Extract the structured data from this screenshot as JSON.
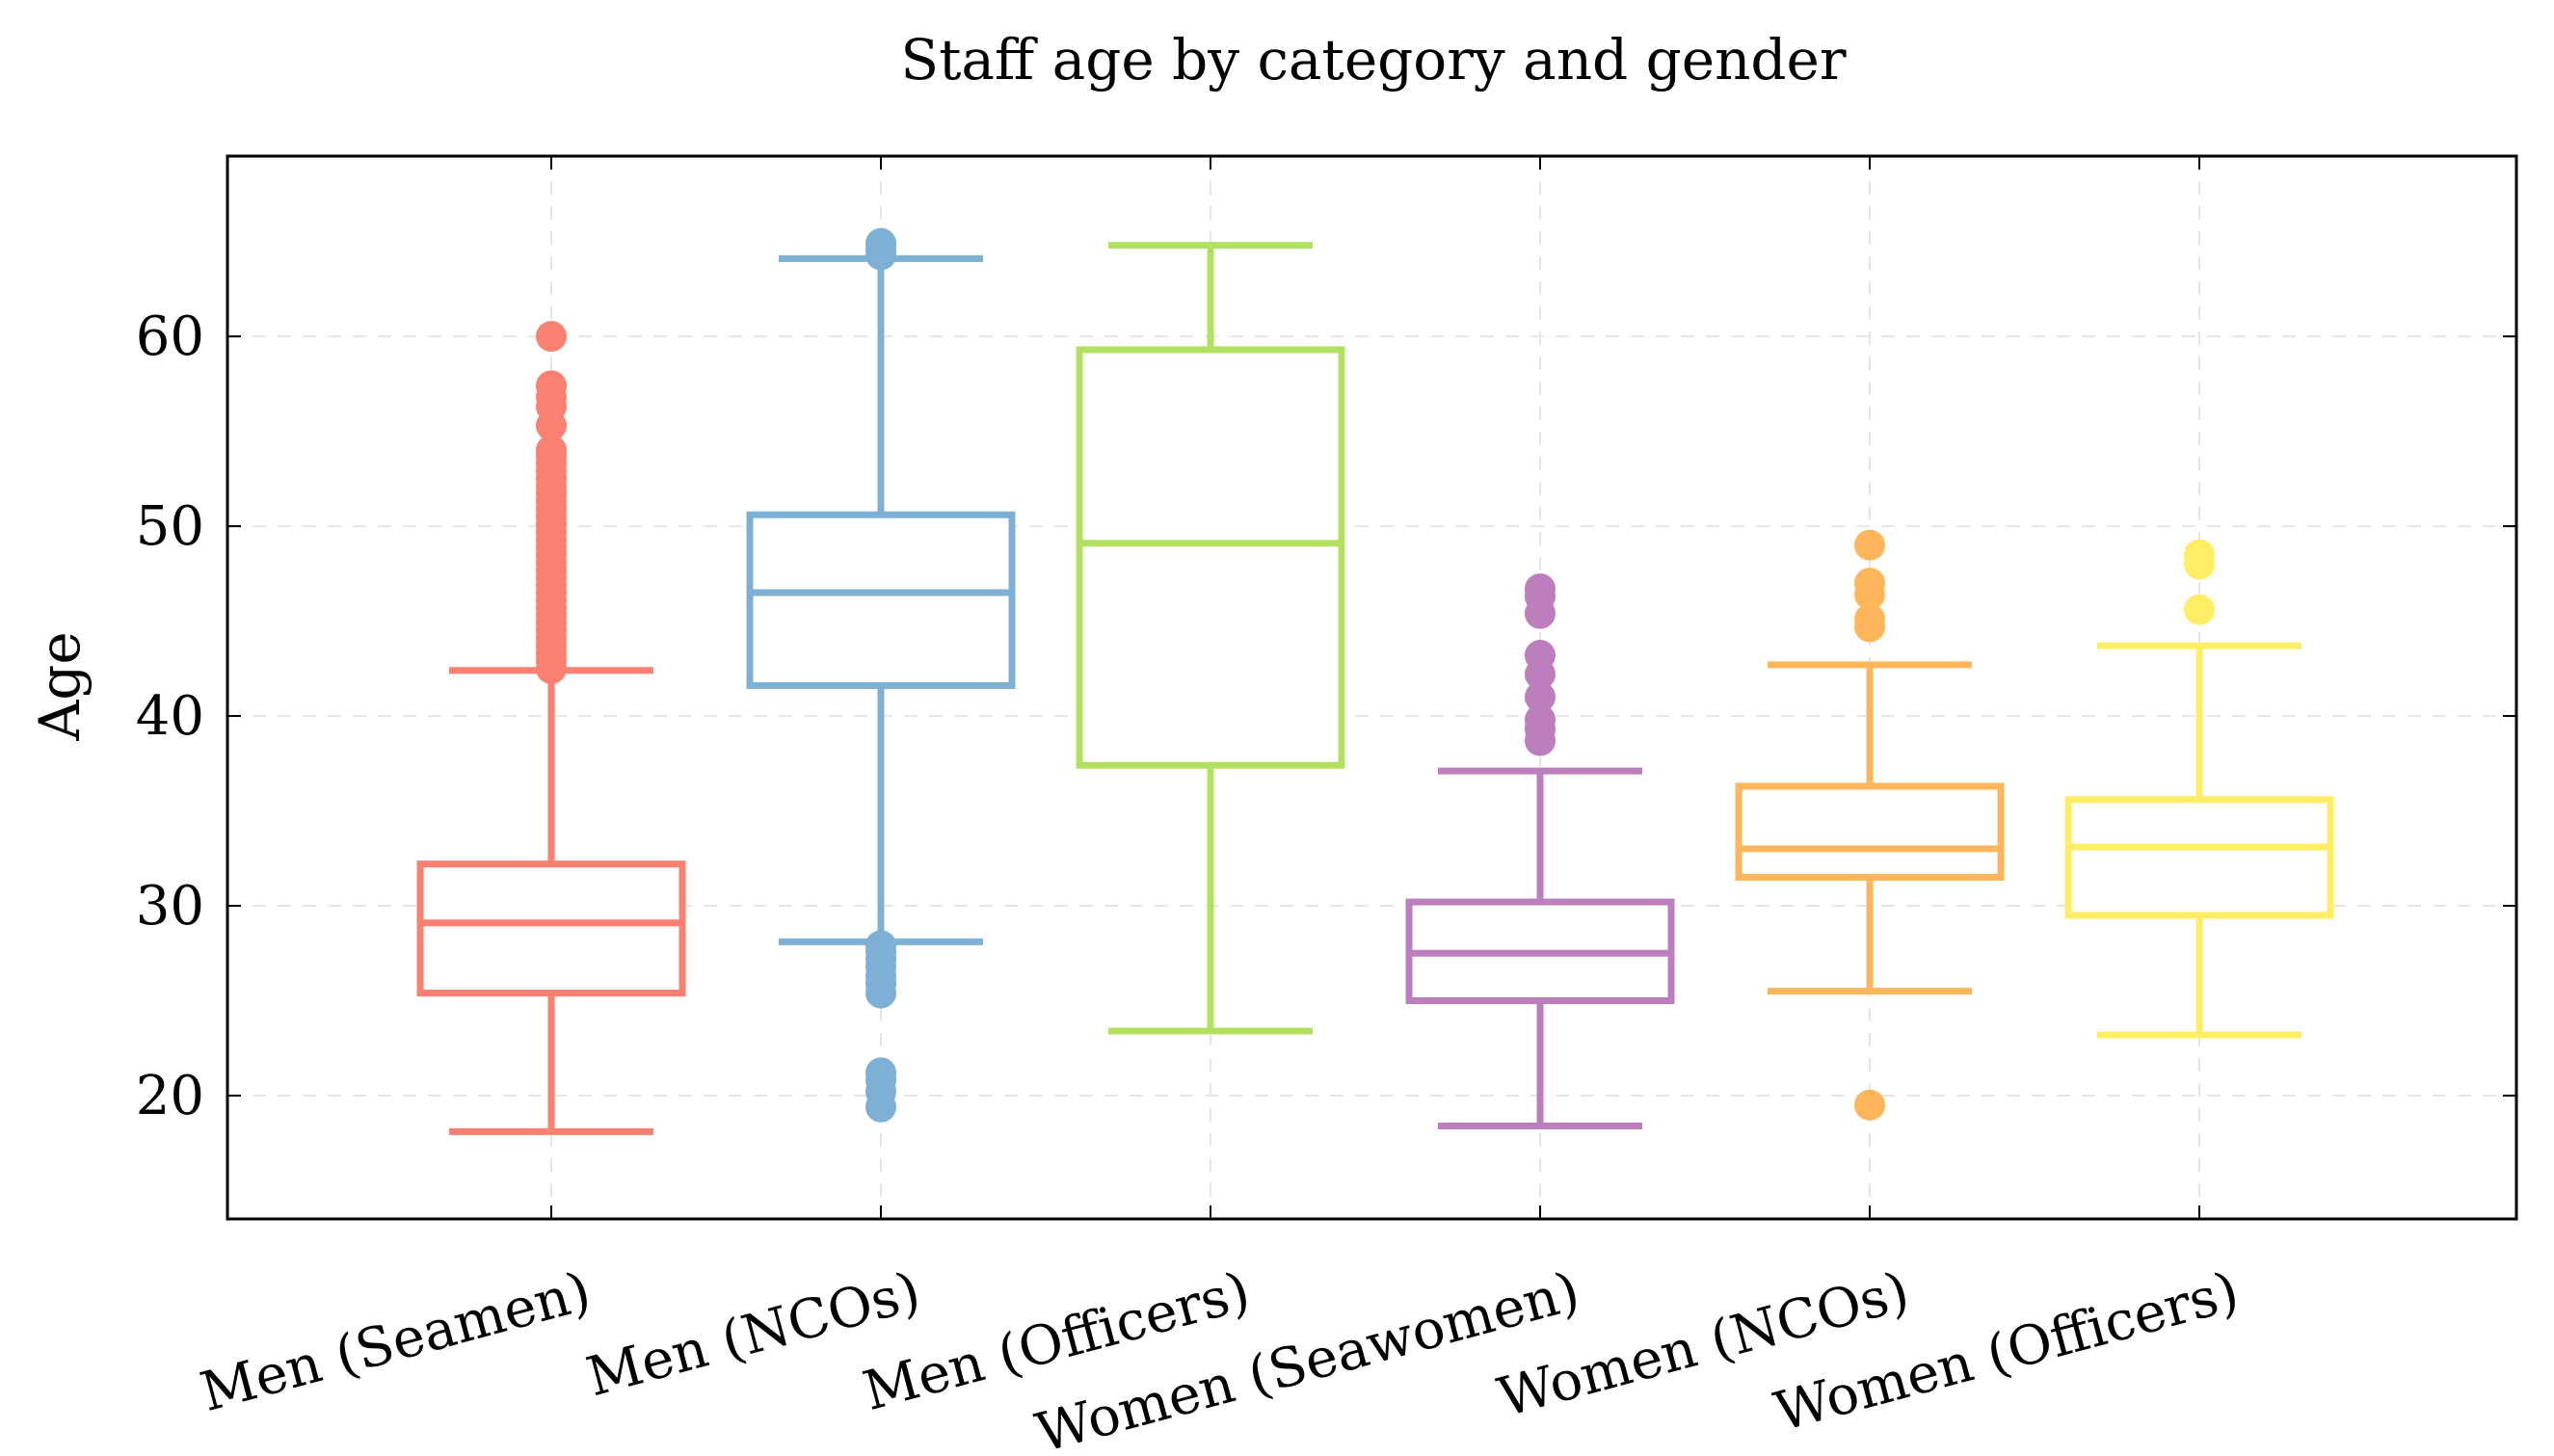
{
  "chart_data": {
    "type": "box",
    "title": "Staff age by category and gender",
    "xlabel": "",
    "ylabel": "Age",
    "ylim": [
      13.5,
      69.5
    ],
    "yticks": [
      20,
      30,
      40,
      50,
      60
    ],
    "grid": true,
    "categories": [
      "Men (Seamen)",
      "Men (NCOs)",
      "Men (Officers)",
      "Women (Seawomen)",
      "Women (NCOs)",
      "Women (Officers)"
    ],
    "colors": [
      "#fa8072",
      "#7eb0d5",
      "#b2e061",
      "#bd7ebe",
      "#ffb55a",
      "#ffee65"
    ],
    "boxes": [
      {
        "name": "Men (Seamen)",
        "whisker_low": 18.1,
        "q1": 25.4,
        "median": 29.1,
        "q3": 32.2,
        "whisker_high": 42.4,
        "outliers": [
          42.5,
          42.9,
          43.3,
          43.7,
          44.1,
          44.5,
          44.9,
          45.3,
          45.7,
          46.1,
          46.5,
          46.9,
          47.3,
          47.7,
          48.1,
          48.5,
          48.9,
          49.3,
          49.7,
          50.1,
          50.5,
          50.9,
          51.3,
          51.7,
          52.1,
          52.5,
          52.9,
          53.3,
          53.7,
          54.0,
          55.3,
          56.3,
          56.8,
          57.4,
          60.0
        ]
      },
      {
        "name": "Men (NCOs)",
        "whisker_low": 28.1,
        "q1": 41.6,
        "median": 46.5,
        "q3": 50.6,
        "whisker_high": 64.1,
        "outliers": [
          19.4,
          20.2,
          20.8,
          21.2,
          25.4,
          25.9,
          26.3,
          26.8,
          27.2,
          27.6,
          27.9,
          64.3,
          64.6,
          64.9
        ]
      },
      {
        "name": "Men (Officers)",
        "whisker_low": 23.4,
        "q1": 37.4,
        "median": 49.1,
        "q3": 59.3,
        "whisker_high": 64.8,
        "outliers": []
      },
      {
        "name": "Women (Seawomen)",
        "whisker_low": 18.4,
        "q1": 25.0,
        "median": 27.5,
        "q3": 30.2,
        "whisker_high": 37.1,
        "outliers": [
          38.7,
          39.3,
          39.8,
          41.0,
          42.2,
          43.2,
          45.4,
          46.3,
          46.7
        ]
      },
      {
        "name": "Women (NCOs)",
        "whisker_low": 25.5,
        "q1": 31.5,
        "median": 33.0,
        "q3": 36.3,
        "whisker_high": 42.7,
        "outliers": [
          19.5,
          44.7,
          45.1,
          46.4,
          47.0,
          49.0
        ]
      },
      {
        "name": "Women (Officers)",
        "whisker_low": 23.2,
        "q1": 29.5,
        "median": 33.1,
        "q3": 35.6,
        "whisker_high": 43.7,
        "outliers": [
          45.6,
          48.0,
          48.5
        ]
      }
    ]
  }
}
